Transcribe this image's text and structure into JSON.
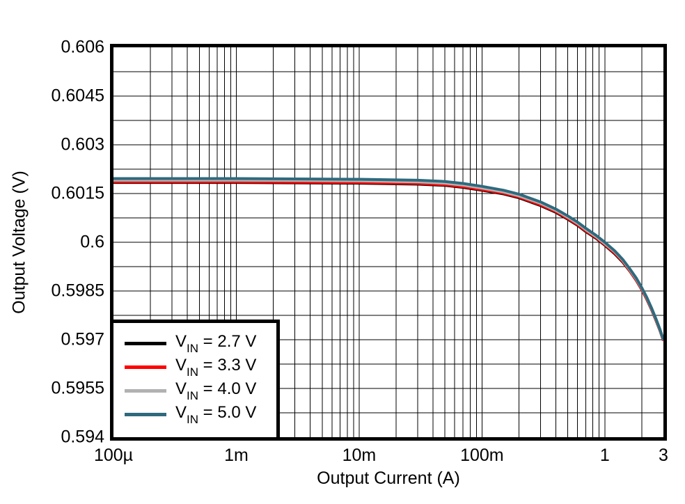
{
  "figure": {
    "xlabel": "Output Current (A)",
    "ylabel": "Output Voltage (V)",
    "background": "#ffffff",
    "frame_color": "#000000"
  },
  "chart_data": {
    "type": "line",
    "x_scale": "log",
    "xlabel": "Output Current (A)",
    "ylabel": "Output Voltage (V)",
    "xlim": [
      0.0001,
      3
    ],
    "ylim": [
      0.594,
      0.606
    ],
    "grid": "major+minor",
    "grid_color": "#000000",
    "y_major_step": 0.0015,
    "y_minor_step": 0.00075,
    "legend_position": "lower-left",
    "line_width": 4,
    "x_ticks": [
      {
        "value": 0.0001,
        "label": "100µ"
      },
      {
        "value": 0.001,
        "label": "1m"
      },
      {
        "value": 0.01,
        "label": "10m"
      },
      {
        "value": 0.1,
        "label": "100m"
      },
      {
        "value": 1,
        "label": "1"
      },
      {
        "value": 3,
        "label": "3"
      }
    ],
    "y_ticks": [
      {
        "value": 0.606,
        "label": "0.606"
      },
      {
        "value": 0.6045,
        "label": "0.6045"
      },
      {
        "value": 0.603,
        "label": "0.603"
      },
      {
        "value": 0.6015,
        "label": "0.6015"
      },
      {
        "value": 0.6,
        "label": "0.6"
      },
      {
        "value": 0.5985,
        "label": "0.5985"
      },
      {
        "value": 0.597,
        "label": "0.597"
      },
      {
        "value": 0.5955,
        "label": "0.5955"
      },
      {
        "value": 0.594,
        "label": "0.594"
      }
    ],
    "series": [
      {
        "name": "VIN = 2.7 V",
        "legend": {
          "base": "V",
          "sub": "IN",
          "rest": " = 2.7 V"
        },
        "color": "#000000",
        "points": [
          [
            0.0001,
            0.60184
          ],
          [
            0.0003,
            0.60184
          ],
          [
            0.001,
            0.60184
          ],
          [
            0.003,
            0.60183
          ],
          [
            0.01,
            0.60182
          ],
          [
            0.02,
            0.6018
          ],
          [
            0.03,
            0.60179
          ],
          [
            0.05,
            0.60175
          ],
          [
            0.07,
            0.60169
          ],
          [
            0.1,
            0.6016
          ],
          [
            0.15,
            0.60149
          ],
          [
            0.2,
            0.60137
          ],
          [
            0.3,
            0.60113
          ],
          [
            0.4,
            0.60092
          ],
          [
            0.5,
            0.60071
          ],
          [
            0.6,
            0.60052
          ],
          [
            0.7,
            0.60033
          ],
          [
            0.85,
            0.60012
          ],
          [
            1.0,
            0.59991
          ],
          [
            1.2,
            0.59965
          ],
          [
            1.4,
            0.59939
          ],
          [
            1.6,
            0.59911
          ],
          [
            1.8,
            0.59883
          ],
          [
            2.0,
            0.59854
          ],
          [
            2.2,
            0.59824
          ],
          [
            2.4,
            0.59793
          ],
          [
            2.6,
            0.59761
          ],
          [
            2.8,
            0.5973
          ],
          [
            3.0,
            0.59697
          ]
        ]
      },
      {
        "name": "VIN = 3.3 V",
        "legend": {
          "base": "V",
          "sub": "IN",
          "rest": " = 3.3 V"
        },
        "color": "#fe0000",
        "points": [
          [
            0.0001,
            0.60186
          ],
          [
            0.0003,
            0.60186
          ],
          [
            0.001,
            0.60186
          ],
          [
            0.003,
            0.60185
          ],
          [
            0.01,
            0.60184
          ],
          [
            0.02,
            0.60182
          ],
          [
            0.03,
            0.60181
          ],
          [
            0.05,
            0.60177
          ],
          [
            0.07,
            0.60171
          ],
          [
            0.1,
            0.60162
          ],
          [
            0.15,
            0.60151
          ],
          [
            0.2,
            0.60139
          ],
          [
            0.3,
            0.60115
          ],
          [
            0.4,
            0.60094
          ],
          [
            0.5,
            0.60073
          ],
          [
            0.6,
            0.60054
          ],
          [
            0.7,
            0.60035
          ],
          [
            0.85,
            0.60014
          ],
          [
            1.0,
            0.59993
          ],
          [
            1.2,
            0.59967
          ],
          [
            1.4,
            0.59941
          ],
          [
            1.6,
            0.59912
          ],
          [
            1.8,
            0.59884
          ],
          [
            2.0,
            0.59855
          ],
          [
            2.2,
            0.59825
          ],
          [
            2.4,
            0.59794
          ],
          [
            2.6,
            0.59762
          ],
          [
            2.8,
            0.59731
          ],
          [
            3.0,
            0.59697
          ]
        ]
      },
      {
        "name": "VIN = 4.0 V",
        "legend": {
          "base": "V",
          "sub": "IN",
          "rest": " = 4.0 V"
        },
        "color": "#b2b2b2",
        "points": [
          [
            0.0001,
            0.60191
          ],
          [
            0.0003,
            0.60191
          ],
          [
            0.001,
            0.60191
          ],
          [
            0.003,
            0.6019
          ],
          [
            0.01,
            0.60189
          ],
          [
            0.02,
            0.60187
          ],
          [
            0.03,
            0.60186
          ],
          [
            0.05,
            0.60182
          ],
          [
            0.07,
            0.60176
          ],
          [
            0.1,
            0.60167
          ],
          [
            0.15,
            0.60155
          ],
          [
            0.2,
            0.60143
          ],
          [
            0.3,
            0.6012
          ],
          [
            0.4,
            0.60098
          ],
          [
            0.5,
            0.60077
          ],
          [
            0.6,
            0.60058
          ],
          [
            0.7,
            0.60039
          ],
          [
            0.85,
            0.60017
          ],
          [
            1.0,
            0.59996
          ],
          [
            1.2,
            0.59971
          ],
          [
            1.4,
            0.59944
          ],
          [
            1.6,
            0.59915
          ],
          [
            1.8,
            0.59887
          ],
          [
            2.0,
            0.59858
          ],
          [
            2.2,
            0.59828
          ],
          [
            2.4,
            0.59796
          ],
          [
            2.6,
            0.59764
          ],
          [
            2.8,
            0.59732
          ],
          [
            3.0,
            0.59699
          ]
        ]
      },
      {
        "name": "VIN = 5.0 V",
        "legend": {
          "base": "V",
          "sub": "IN",
          "rest": " = 5.0 V"
        },
        "color": "#2e6a7e",
        "points": [
          [
            0.0001,
            0.60196
          ],
          [
            0.0003,
            0.60196
          ],
          [
            0.001,
            0.60196
          ],
          [
            0.003,
            0.60195
          ],
          [
            0.01,
            0.60194
          ],
          [
            0.02,
            0.60192
          ],
          [
            0.03,
            0.60191
          ],
          [
            0.05,
            0.60187
          ],
          [
            0.07,
            0.60181
          ],
          [
            0.1,
            0.60172
          ],
          [
            0.15,
            0.6016
          ],
          [
            0.2,
            0.60148
          ],
          [
            0.3,
            0.60124
          ],
          [
            0.4,
            0.60102
          ],
          [
            0.5,
            0.60081
          ],
          [
            0.6,
            0.60062
          ],
          [
            0.7,
            0.60043
          ],
          [
            0.85,
            0.60021
          ],
          [
            1.0,
            0.6
          ],
          [
            1.2,
            0.59974
          ],
          [
            1.4,
            0.59947
          ],
          [
            1.6,
            0.59918
          ],
          [
            1.8,
            0.5989
          ],
          [
            2.0,
            0.5986
          ],
          [
            2.2,
            0.5983
          ],
          [
            2.4,
            0.59798
          ],
          [
            2.6,
            0.59766
          ],
          [
            2.8,
            0.59734
          ],
          [
            3.0,
            0.597
          ]
        ]
      }
    ]
  }
}
